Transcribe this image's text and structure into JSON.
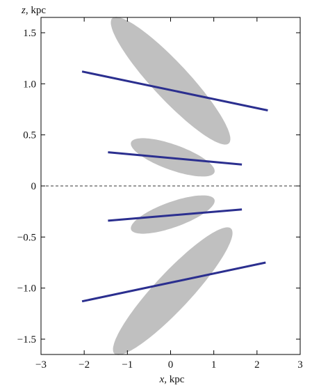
{
  "chart_data": {
    "type": "scatter",
    "title": "",
    "xlabel": {
      "var": "x",
      "unit": ", kpc"
    },
    "ylabel": {
      "var": "z",
      "unit": ", kpc"
    },
    "xlim": [
      -3,
      3
    ],
    "ylim": [
      -1.65,
      1.65
    ],
    "x_ticks": [
      -3,
      -2,
      -1,
      0,
      1,
      2,
      3
    ],
    "y_ticks": [
      -1.5,
      -1.0,
      -0.5,
      0,
      0.5,
      1.0,
      1.5
    ],
    "x_tick_labels": [
      "−3",
      "−2",
      "−1",
      "0",
      "1",
      "2",
      "3"
    ],
    "y_tick_labels": [
      "−1.5",
      "−1.0",
      "−0.5",
      "0",
      "0.5",
      "1.0",
      "1.5"
    ],
    "grid": false,
    "reference_line": {
      "z": 0,
      "style": "dashed"
    },
    "ellipses": [
      {
        "center": [
          0,
          1.03
        ],
        "semi_major": 1.5,
        "semi_minor": 0.235,
        "angle_deg": -23,
        "color": "#c0c0c0"
      },
      {
        "center": [
          0.05,
          0.28
        ],
        "semi_major": 0.98,
        "semi_minor": 0.13,
        "angle_deg": -8,
        "color": "#c0c0c0"
      },
      {
        "center": [
          0.05,
          -0.28
        ],
        "semi_major": 0.98,
        "semi_minor": 0.13,
        "angle_deg": 8,
        "color": "#c0c0c0"
      },
      {
        "center": [
          0.05,
          -1.03
        ],
        "semi_major": 1.5,
        "semi_minor": 0.235,
        "angle_deg": 23,
        "color": "#c0c0c0"
      }
    ],
    "series": [
      {
        "x": [
          -2.05,
          2.25
        ],
        "y": [
          1.12,
          0.74
        ],
        "color": "#2b2f8f"
      },
      {
        "x": [
          -1.45,
          1.65
        ],
        "y": [
          0.33,
          0.21
        ],
        "color": "#2b2f8f"
      },
      {
        "x": [
          -1.45,
          1.65
        ],
        "y": [
          -0.34,
          -0.23
        ],
        "color": "#2b2f8f"
      },
      {
        "x": [
          -2.05,
          2.2
        ],
        "y": [
          -1.13,
          -0.75
        ],
        "color": "#2b2f8f"
      }
    ]
  }
}
